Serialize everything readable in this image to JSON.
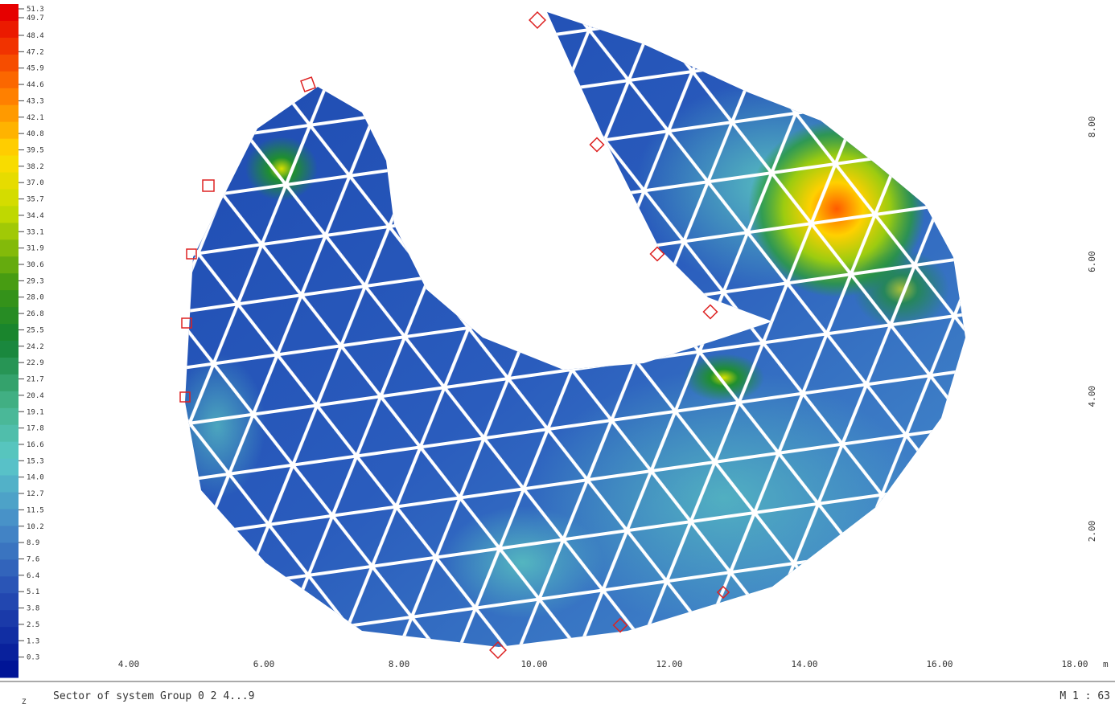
{
  "legend": {
    "labels": [
      "51.3",
      "49.7",
      "48.4",
      "47.2",
      "45.9",
      "44.6",
      "43.3",
      "42.1",
      "40.8",
      "39.5",
      "38.2",
      "37.0",
      "35.7",
      "34.4",
      "33.1",
      "31.9",
      "30.6",
      "29.3",
      "28.0",
      "26.8",
      "25.5",
      "24.2",
      "22.9",
      "21.7",
      "20.4",
      "19.1",
      "17.8",
      "16.6",
      "15.3",
      "14.0",
      "12.7",
      "11.5",
      "10.2",
      "8.9",
      "7.6",
      "6.4",
      "5.1",
      "3.8",
      "2.5",
      "1.3",
      "0.3"
    ]
  },
  "x_axis": {
    "labels": [
      "4.00",
      "6.00",
      "8.00",
      "10.00",
      "12.00",
      "14.00",
      "16.00",
      "18.00"
    ],
    "unit": "m"
  },
  "y_axis": {
    "labels": [
      "2.00",
      "4.00",
      "6.00",
      "8.00"
    ]
  },
  "footer": {
    "axis_marker": "Z",
    "description": "Sector of system Group 0 2 4...9",
    "scale": "M 1 : 63"
  }
}
